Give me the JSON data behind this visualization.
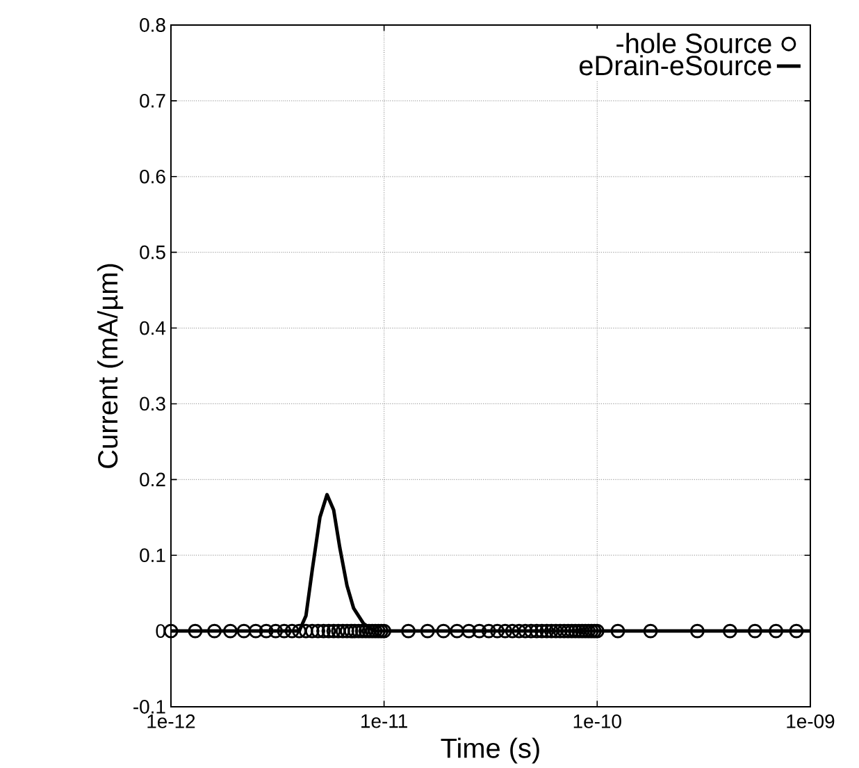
{
  "chart_data": {
    "type": "line",
    "xlabel": "Time (s)",
    "ylabel": "Current (mA/µm)",
    "log": "x",
    "grid": true,
    "legend": "top right",
    "xlim": [
      1e-12,
      1e-09
    ],
    "ylim": [
      -0.1,
      0.8
    ],
    "xticks": [
      {
        "value": 1e-12,
        "label": "1e-12"
      },
      {
        "value": 1e-11,
        "label": "1e-11"
      },
      {
        "value": 1e-10,
        "label": "1e-10"
      },
      {
        "value": 1e-09,
        "label": "1e-09"
      }
    ],
    "yticks": [
      {
        "value": -0.1,
        "label": "-0.1"
      },
      0,
      0.1,
      0.2,
      0.3,
      0.4,
      0.5,
      0.6,
      0.7,
      0.8
    ],
    "series": [
      {
        "name": "-hole Source",
        "type": "scatter",
        "marker": "circle",
        "color": "#000000",
        "x": [
          1e-12,
          1.3e-12,
          1.6e-12,
          1.9e-12,
          2.2e-12,
          2.5e-12,
          2.8e-12,
          3.1e-12,
          3.4e-12,
          3.7e-12,
          4e-12,
          4.3e-12,
          4.6e-12,
          4.9e-12,
          5.2e-12,
          5.5e-12,
          5.8e-12,
          6.1e-12,
          6.4e-12,
          6.7e-12,
          7e-12,
          7.3e-12,
          7.6e-12,
          7.9e-12,
          8.2e-12,
          8.5e-12,
          8.8e-12,
          9.1e-12,
          9.4e-12,
          9.7e-12,
          1e-11,
          1.3e-11,
          1.6e-11,
          1.9e-11,
          2.2e-11,
          2.5e-11,
          2.8e-11,
          3.1e-11,
          3.4e-11,
          3.7e-11,
          4e-11,
          4.3e-11,
          4.6e-11,
          4.9e-11,
          5.2e-11,
          5.5e-11,
          5.8e-11,
          6.1e-11,
          6.4e-11,
          6.7e-11,
          7e-11,
          7.3e-11,
          7.6e-11,
          7.9e-11,
          8.2e-11,
          8.5e-11,
          8.8e-11,
          9.1e-11,
          9.4e-11,
          9.7e-11,
          1e-10,
          1.25e-10,
          1.78e-10,
          2.95e-10,
          4.2e-10,
          5.5e-10,
          6.9e-10,
          8.6e-10
        ],
        "values": [
          0,
          0,
          0,
          0,
          0,
          0,
          0,
          0,
          0,
          0,
          0,
          0,
          0,
          0,
          0,
          0,
          0,
          0,
          0,
          0,
          0,
          0,
          0,
          0,
          0,
          0,
          0,
          0,
          0,
          0,
          0,
          0,
          0,
          0,
          0,
          0,
          0,
          0,
          0,
          0,
          0,
          0,
          0,
          0,
          0,
          0,
          0,
          0,
          0,
          0,
          0,
          0,
          0,
          0,
          0,
          0,
          0,
          0,
          0,
          0,
          0,
          0,
          0,
          0,
          0,
          0,
          0,
          0
        ]
      },
      {
        "name": "eDrain-eSource",
        "marker": "none",
        "line_style": "solid",
        "color": "#000000",
        "x": [
          1e-12,
          4e-12,
          4.3e-12,
          4.6e-12,
          5e-12,
          5.4e-12,
          5.8e-12,
          6.2e-12,
          6.7e-12,
          7.2e-12,
          8e-12,
          9e-12,
          1e-11,
          1e-10,
          1e-09
        ],
        "values": [
          0,
          0,
          0.02,
          0.08,
          0.15,
          0.18,
          0.16,
          0.11,
          0.06,
          0.03,
          0.01,
          0,
          0,
          0,
          0
        ]
      }
    ]
  }
}
